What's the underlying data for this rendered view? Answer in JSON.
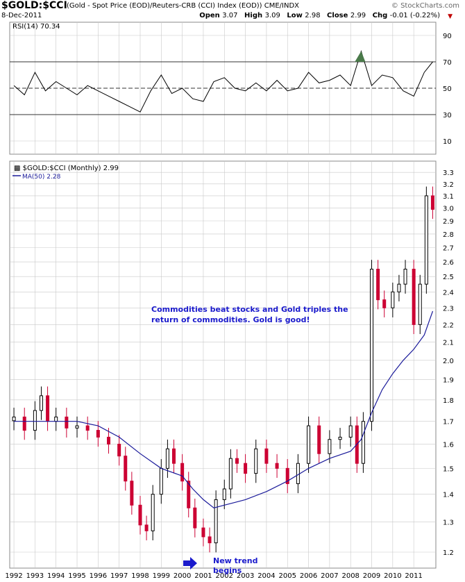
{
  "header": {
    "symbol": "$GOLD:$CCI",
    "description": "(Gold - Spot Price (EOD)/Reuters-CRB (CCI) Index (EOD))  CME/INDX",
    "site": "© StockCharts.com",
    "date": "8-Dec-2011",
    "open_label": "Open",
    "open": "3.07",
    "high_label": "High",
    "high": "3.09",
    "low_label": "Low",
    "low": "2.98",
    "close_label": "Close",
    "close": "2.99",
    "chg_label": "Chg",
    "chg": "-0.01 (-0.22%)"
  },
  "colors": {
    "up": "#000000",
    "down": "#cc0033",
    "ma": "#1a1a9a",
    "rsi": "#000000",
    "rsi_fill": "#4a7a4a",
    "grid": "#c8c8c8",
    "annotation": "#1a1acc"
  },
  "chart_data": [
    {
      "type": "line",
      "title": "RSI(14) 70.34",
      "ylim": [
        0,
        100
      ],
      "yticks": [
        10,
        30,
        50,
        70,
        90
      ],
      "reference_lines": [
        30,
        50,
        70
      ],
      "x": [
        1992.0,
        1992.5,
        1993.0,
        1993.5,
        1994.0,
        1994.5,
        1995.0,
        1995.5,
        1996.0,
        1996.5,
        1997.0,
        1997.5,
        1998.0,
        1998.5,
        1999.0,
        1999.5,
        2000.0,
        2000.5,
        2001.0,
        2001.5,
        2002.0,
        2002.5,
        2003.0,
        2003.5,
        2004.0,
        2004.5,
        2005.0,
        2005.5,
        2006.0,
        2006.5,
        2007.0,
        2007.5,
        2008.0,
        2008.5,
        2009.0,
        2009.5,
        2010.0,
        2010.5,
        2011.0,
        2011.5,
        2011.9
      ],
      "values": [
        52,
        45,
        62,
        48,
        55,
        50,
        45,
        52,
        48,
        44,
        40,
        36,
        32,
        48,
        60,
        46,
        50,
        42,
        40,
        55,
        58,
        50,
        48,
        54,
        48,
        56,
        48,
        50,
        62,
        54,
        56,
        60,
        52,
        78,
        52,
        60,
        58,
        48,
        44,
        62,
        70
      ],
      "grid": true
    },
    {
      "type": "candlestick",
      "title": "$GOLD:$CCI (Monthly) 2.99",
      "xlabel": "",
      "ylabel": "",
      "ylim": [
        1.15,
        3.4
      ],
      "yscale": "log",
      "yticks": [
        1.2,
        1.3,
        1.4,
        1.5,
        1.6,
        1.7,
        1.8,
        1.9,
        2.0,
        2.1,
        2.2,
        2.3,
        2.4,
        2.5,
        2.6,
        2.7,
        2.8,
        2.9,
        3.0,
        3.1,
        3.2,
        3.3
      ],
      "xticks": [
        "1992",
        "1993",
        "1994",
        "1995",
        "1996",
        "1997",
        "1998",
        "1999",
        "2000",
        "2001",
        "2002",
        "2003",
        "2004",
        "2005",
        "2006",
        "2007",
        "2008",
        "2009",
        "2010",
        "2011"
      ],
      "xlim": [
        1991.8,
        2012.05
      ],
      "grid": true,
      "series": [
        {
          "name": "$GOLD:$CCI (Monthly) 2.99",
          "x": [
            1992.0,
            1992.5,
            1993.0,
            1993.3,
            1993.6,
            1994.0,
            1994.5,
            1995.0,
            1995.5,
            1996.0,
            1996.5,
            1997.0,
            1997.3,
            1997.6,
            1998.0,
            1998.3,
            1998.6,
            1999.0,
            1999.3,
            1999.6,
            2000.0,
            2000.3,
            2000.6,
            2001.0,
            2001.3,
            2001.6,
            2002.0,
            2002.3,
            2002.6,
            2003.0,
            2003.5,
            2004.0,
            2004.5,
            2005.0,
            2005.5,
            2006.0,
            2006.5,
            2007.0,
            2007.5,
            2008.0,
            2008.3,
            2008.6,
            2009.0,
            2009.3,
            2009.6,
            2010.0,
            2010.3,
            2010.6,
            2011.0,
            2011.3,
            2011.6,
            2011.9
          ],
          "close": [
            1.72,
            1.66,
            1.75,
            1.82,
            1.7,
            1.72,
            1.67,
            1.68,
            1.66,
            1.63,
            1.6,
            1.55,
            1.45,
            1.36,
            1.29,
            1.27,
            1.4,
            1.5,
            1.58,
            1.52,
            1.45,
            1.35,
            1.28,
            1.25,
            1.23,
            1.38,
            1.42,
            1.54,
            1.52,
            1.48,
            1.58,
            1.52,
            1.5,
            1.44,
            1.52,
            1.68,
            1.56,
            1.62,
            1.63,
            1.68,
            1.52,
            1.7,
            2.55,
            2.35,
            2.3,
            2.4,
            2.45,
            2.55,
            2.2,
            2.45,
            3.1,
            2.99
          ]
        },
        {
          "name": "MA(50) 2.28",
          "x": [
            1992.0,
            1993.0,
            1994.0,
            1995.0,
            1996.0,
            1997.0,
            1998.0,
            1999.0,
            2000.0,
            2000.5,
            2001.0,
            2001.5,
            2002.0,
            2002.5,
            2003.0,
            2004.0,
            2005.0,
            2006.0,
            2007.0,
            2008.0,
            2008.5,
            2009.0,
            2009.5,
            2010.0,
            2010.5,
            2011.0,
            2011.5,
            2011.9
          ],
          "values": [
            1.7,
            1.7,
            1.7,
            1.7,
            1.68,
            1.63,
            1.56,
            1.5,
            1.47,
            1.42,
            1.38,
            1.35,
            1.36,
            1.37,
            1.38,
            1.41,
            1.45,
            1.5,
            1.54,
            1.57,
            1.62,
            1.74,
            1.85,
            1.93,
            2.0,
            2.06,
            2.14,
            2.28
          ]
        }
      ],
      "annotations": [
        "Commodities beat stocks and Gold triples the",
        "return of commodities. Gold is good!",
        "New trend",
        "begins"
      ]
    }
  ]
}
